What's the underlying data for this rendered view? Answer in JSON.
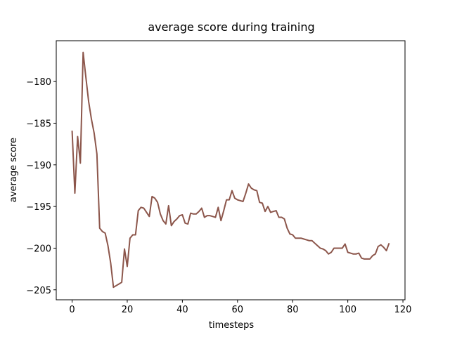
{
  "chart_data": {
    "type": "line",
    "title": "average score during training",
    "x_label": "timesteps",
    "y_label": "average score",
    "x": [
      0,
      1,
      2,
      3,
      4,
      5,
      6,
      7,
      8,
      9,
      10,
      11,
      12,
      13,
      14,
      15,
      16,
      17,
      18,
      19,
      20,
      21,
      22,
      23,
      24,
      25,
      26,
      27,
      28,
      29,
      30,
      31,
      32,
      33,
      34,
      35,
      36,
      37,
      38,
      39,
      40,
      41,
      42,
      43,
      44,
      45,
      46,
      47,
      48,
      49,
      50,
      51,
      52,
      53,
      54,
      55,
      56,
      57,
      58,
      59,
      60,
      61,
      62,
      63,
      64,
      65,
      66,
      67,
      68,
      69,
      70,
      71,
      72,
      73,
      74,
      75,
      76,
      77,
      78,
      79,
      80,
      81,
      82,
      83,
      84,
      85,
      86,
      87,
      88,
      89,
      90,
      91,
      92,
      93,
      94,
      95,
      96,
      97,
      98,
      99,
      100,
      101,
      102,
      103,
      104,
      105,
      106,
      107,
      108,
      109,
      110,
      111,
      112,
      113,
      114,
      115
    ],
    "series": [
      {
        "color": "#8c564b",
        "values": [
          -185.9,
          -193.4,
          -186.6,
          -189.8,
          -176.5,
          -179.5,
          -182.4,
          -184.5,
          -186.2,
          -188.7,
          -197.6,
          -198.0,
          -198.2,
          -199.7,
          -201.8,
          -204.7,
          -204.5,
          -204.3,
          -204.1,
          -200.1,
          -202.2,
          -198.8,
          -198.4,
          -198.4,
          -195.5,
          -195.1,
          -195.2,
          -195.7,
          -196.2,
          -193.8,
          -194.0,
          -194.5,
          -195.9,
          -196.7,
          -197.1,
          -194.9,
          -197.3,
          -196.8,
          -196.5,
          -196.1,
          -196.0,
          -197.0,
          -197.1,
          -195.8,
          -195.9,
          -195.9,
          -195.6,
          -195.2,
          -196.3,
          -196.1,
          -196.1,
          -196.2,
          -196.3,
          -195.1,
          -196.7,
          -195.5,
          -194.2,
          -194.2,
          -193.1,
          -194.0,
          -194.2,
          -194.3,
          -194.4,
          -193.4,
          -192.3,
          -192.8,
          -193.0,
          -193.1,
          -194.5,
          -194.6,
          -195.6,
          -195.0,
          -195.7,
          -195.6,
          -195.5,
          -196.3,
          -196.3,
          -196.5,
          -197.6,
          -198.3,
          -198.4,
          -198.8,
          -198.8,
          -198.8,
          -198.9,
          -199.0,
          -199.1,
          -199.1,
          -199.4,
          -199.7,
          -200.0,
          -200.1,
          -200.3,
          -200.7,
          -200.5,
          -200.0,
          -200.0,
          -200.0,
          -200.0,
          -199.5,
          -200.5,
          -200.6,
          -200.7,
          -200.7,
          -200.6,
          -201.2,
          -201.3,
          -201.3,
          -201.3,
          -200.9,
          -200.7,
          -199.8,
          -199.6,
          -199.9,
          -200.3,
          -199.4
        ]
      }
    ],
    "xlim": [
      -5.75,
      120.75
    ],
    "xticks": [
      0,
      20,
      40,
      60,
      80,
      100,
      120
    ],
    "ylim": [
      -206.2,
      -175.1
    ],
    "yticks": [
      {
        "value": -180,
        "label": "−180"
      },
      {
        "value": -185,
        "label": "−185"
      },
      {
        "value": -190,
        "label": "−190"
      },
      {
        "value": -195,
        "label": "−195"
      },
      {
        "value": -200,
        "label": "−200"
      },
      {
        "value": -205,
        "label": "−205"
      }
    ],
    "grid": false
  }
}
